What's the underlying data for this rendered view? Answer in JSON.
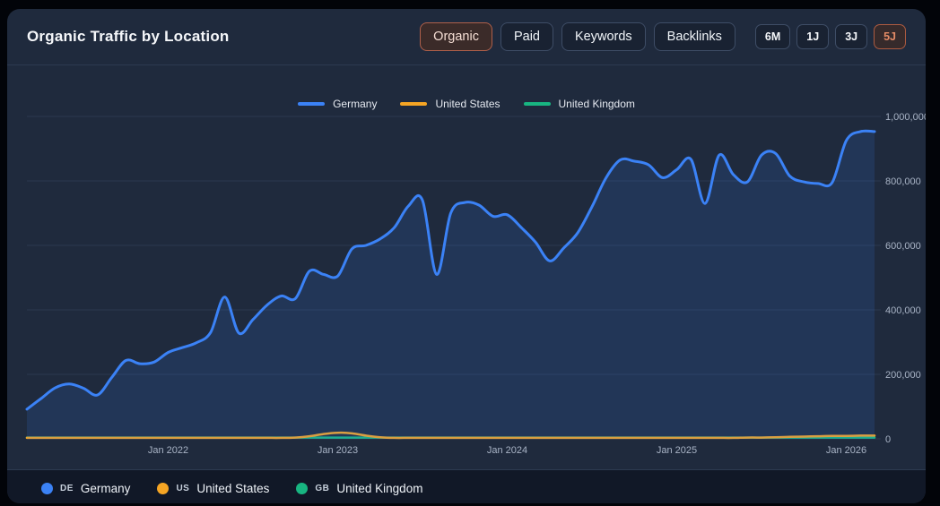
{
  "header": {
    "title": "Organic Traffic by Location",
    "tabs": [
      {
        "label": "Organic",
        "active": true
      },
      {
        "label": "Paid",
        "active": false
      },
      {
        "label": "Keywords",
        "active": false
      },
      {
        "label": "Backlinks",
        "active": false
      }
    ],
    "ranges": [
      {
        "label": "6M",
        "active": false
      },
      {
        "label": "1J",
        "active": false
      },
      {
        "label": "3J",
        "active": false
      },
      {
        "label": "5J",
        "active": true
      }
    ]
  },
  "colors": {
    "germany": "#3b82f6",
    "united_states": "#f5a524",
    "united_kingdom": "#18b581",
    "germany_fill": "rgba(59,130,246,0.14)",
    "grid": "#2b3850",
    "axis_text": "#a9b4c6",
    "accent_active": "#b0604a"
  },
  "chart_data": {
    "type": "line",
    "x_interval": "monthly",
    "x_start": "Mar 2021",
    "x_end": "Mar 2026",
    "x_ticks": [
      {
        "label": "Jan 2022",
        "month_index": 10
      },
      {
        "label": "Jan 2023",
        "month_index": 22
      },
      {
        "label": "Jan 2024",
        "month_index": 34
      },
      {
        "label": "Jan 2025",
        "month_index": 46
      },
      {
        "label": "Jan 2026",
        "month_index": 58
      }
    ],
    "y_ticks": [
      {
        "value": 0,
        "label": "0"
      },
      {
        "value": 200000,
        "label": "200,000"
      },
      {
        "value": 400000,
        "label": "400,000"
      },
      {
        "value": 600000,
        "label": "600,000"
      },
      {
        "value": 800000,
        "label": "800,000"
      },
      {
        "value": 1000000,
        "label": "1,000,000"
      }
    ],
    "ylim": [
      0,
      1000000
    ],
    "grid": "horizontal-only",
    "legend_position": "top-center",
    "series": [
      {
        "name": "Germany",
        "color": "#3b82f6",
        "area_fill": true,
        "values": [
          92000,
          125000,
          158000,
          170000,
          157000,
          136000,
          190000,
          243000,
          233000,
          238000,
          268000,
          283000,
          298000,
          330000,
          440000,
          328000,
          370000,
          415000,
          443000,
          435000,
          520000,
          510000,
          505000,
          589000,
          600000,
          620000,
          655000,
          722000,
          740000,
          510000,
          700000,
          733000,
          725000,
          690000,
          695000,
          655000,
          610000,
          552000,
          592000,
          640000,
          720000,
          810000,
          865000,
          861000,
          850000,
          810000,
          835000,
          867000,
          730000,
          880000,
          820000,
          797000,
          880000,
          885000,
          815000,
          797000,
          792000,
          795000,
          925000,
          953000,
          953000
        ]
      },
      {
        "name": "United States",
        "color": "#f5a524",
        "area_fill": false,
        "values": [
          3000,
          3000,
          3000,
          3000,
          3000,
          3000,
          3000,
          3000,
          3000,
          3000,
          3000,
          3000,
          3000,
          3000,
          3000,
          3000,
          3000,
          3000,
          3000,
          4000,
          8000,
          15000,
          19000,
          17000,
          10000,
          5000,
          3000,
          3000,
          3000,
          3000,
          3000,
          3000,
          3000,
          3000,
          3000,
          3000,
          3000,
          3000,
          3000,
          3000,
          3000,
          3000,
          3000,
          3000,
          3000,
          3000,
          3000,
          3000,
          3000,
          3000,
          3000,
          4000,
          4000,
          5000,
          6000,
          7000,
          8000,
          9000,
          9000,
          10000,
          10000
        ]
      },
      {
        "name": "United Kingdom",
        "color": "#18b581",
        "area_fill": false,
        "values": [
          4000,
          4000,
          4000,
          4000,
          4000,
          4000,
          4000,
          4000,
          4000,
          4000,
          4000,
          4000,
          4000,
          4000,
          4000,
          4000,
          4000,
          4000,
          4000,
          4000,
          4000,
          4000,
          4000,
          4000,
          4000,
          4000,
          4000,
          4000,
          4000,
          4000,
          4000,
          4000,
          4000,
          4000,
          4000,
          4000,
          4000,
          4000,
          4000,
          4000,
          4000,
          4000,
          4000,
          4000,
          4000,
          4000,
          4000,
          4000,
          4000,
          4000,
          4000,
          4000,
          4000,
          4000,
          4000,
          4000,
          4000,
          4000,
          4000,
          4000,
          4000
        ]
      }
    ]
  },
  "legend_bottom": [
    {
      "code": "DE",
      "label": "Germany",
      "color": "#3b82f6"
    },
    {
      "code": "US",
      "label": "United States",
      "color": "#f5a524"
    },
    {
      "code": "GB",
      "label": "United Kingdom",
      "color": "#18b581"
    }
  ]
}
